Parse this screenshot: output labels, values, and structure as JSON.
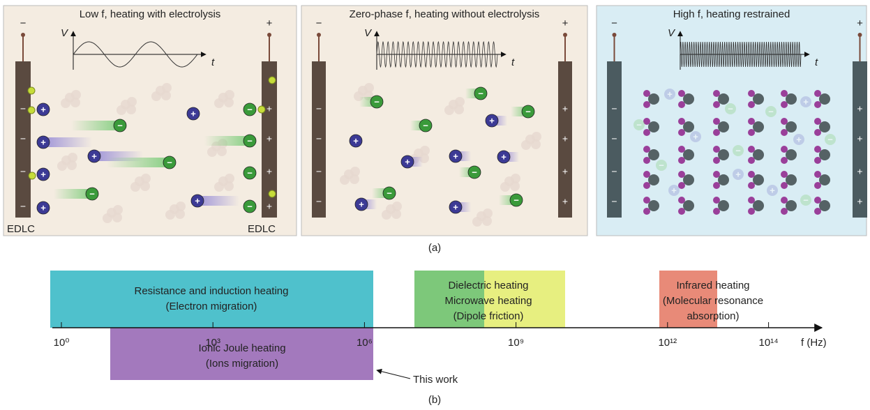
{
  "panels": [
    {
      "title": "Low f, heating with electrolysis",
      "top_signs": [
        "−",
        "+"
      ],
      "left_electrode": [
        "−",
        "−",
        "−",
        "−"
      ],
      "right_electrode": [
        "+",
        "+",
        "+",
        "+"
      ],
      "electrode_labels": [
        "EDLC",
        "EDLC"
      ],
      "axis_labels": [
        "V",
        "t"
      ]
    },
    {
      "title": "Zero-phase f, heating without electrolysis",
      "top_signs": [
        "−",
        "+"
      ],
      "left_electrode": [
        "−",
        "−",
        "−",
        "−"
      ],
      "right_electrode": [
        "+",
        "+",
        "+",
        "+"
      ],
      "axis_labels": [
        "V",
        "t"
      ]
    },
    {
      "title": "High f, heating restrained",
      "top_signs": [
        "−",
        "+"
      ],
      "left_electrode": [
        "−",
        "−",
        "−",
        "−"
      ],
      "right_electrode": [
        "+",
        "+",
        "+",
        "+"
      ],
      "axis_labels": [
        "V",
        "t"
      ]
    }
  ],
  "ion_symbols": {
    "cation": "+",
    "anion": "−"
  },
  "panel_a_label": "(a)",
  "spectrum": {
    "ticks": [
      {
        "value": 1,
        "label": "10⁰"
      },
      {
        "value": 1000,
        "label": "10³"
      },
      {
        "value": 1000000,
        "label": "10⁶"
      },
      {
        "value": 1000000000,
        "label": "10⁹"
      },
      {
        "value": 1000000000000,
        "label": "10¹²"
      },
      {
        "value": 100000000000000,
        "label": "10¹⁴"
      }
    ],
    "axis_label": "f (Hz)",
    "bands": [
      {
        "lines": [
          "Resistance and induction heating",
          "(Electron migration)"
        ]
      },
      {
        "lines": [
          "Ionic Joule heating",
          "(Ions migration)"
        ]
      },
      {
        "lines": [
          "Dielectric heating",
          "Microwave heating",
          "(Dipole friction)"
        ]
      },
      {
        "lines": [
          "Infrared heating",
          "(Molecular resonance",
          "absorption)"
        ]
      }
    ],
    "annotation": "This work"
  },
  "panel_b_label": "(b)"
}
